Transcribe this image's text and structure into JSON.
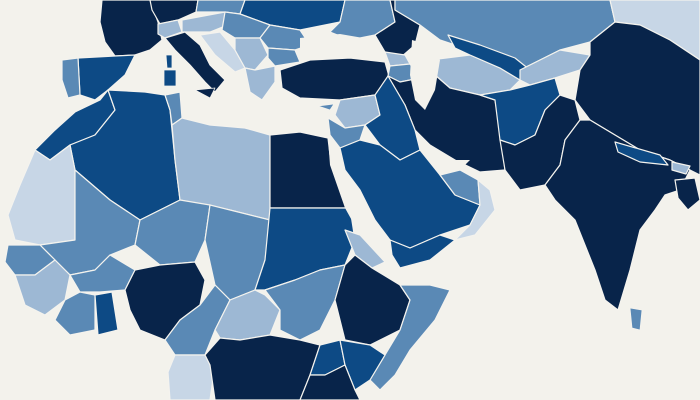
{
  "map": {
    "background": "#f3f2ec",
    "border_color": "#f4f3ee",
    "scale": {
      "c1": "#c7d6e6",
      "c2": "#9db8d4",
      "c3": "#5a89b5",
      "c4": "#0d4a85",
      "c5": "#08244a"
    }
  },
  "regions": [
    {
      "id": "france",
      "shade": "c5"
    },
    {
      "id": "benelux-germany",
      "shade": "c5"
    },
    {
      "id": "switzerland",
      "shade": "c2"
    },
    {
      "id": "austria",
      "shade": "c2"
    },
    {
      "id": "czech",
      "shade": "c3"
    },
    {
      "id": "poland",
      "shade": "c4"
    },
    {
      "id": "ukraine",
      "shade": "c3"
    },
    {
      "id": "russia-west",
      "shade": "c5"
    },
    {
      "id": "kazakhstan",
      "shade": "c3"
    },
    {
      "id": "mongolia-edge",
      "shade": "c1"
    },
    {
      "id": "spain",
      "shade": "c4"
    },
    {
      "id": "portugal",
      "shade": "c3"
    },
    {
      "id": "italy",
      "shade": "c5"
    },
    {
      "id": "sardinia",
      "shade": "c4"
    },
    {
      "id": "corsica",
      "shade": "c4"
    },
    {
      "id": "sicily",
      "shade": "c5"
    },
    {
      "id": "slovenia-croatia",
      "shade": "c1"
    },
    {
      "id": "hungary",
      "shade": "c3"
    },
    {
      "id": "balkans",
      "shade": "c2"
    },
    {
      "id": "romania",
      "shade": "c3"
    },
    {
      "id": "bulgaria",
      "shade": "c3"
    },
    {
      "id": "greece",
      "shade": "c2"
    },
    {
      "id": "turkey",
      "shade": "c5"
    },
    {
      "id": "cyprus",
      "shade": "c3"
    },
    {
      "id": "georgia",
      "shade": "c2"
    },
    {
      "id": "armenia-azer",
      "shade": "c3"
    },
    {
      "id": "turkmenistan",
      "shade": "c2"
    },
    {
      "id": "uzbekistan",
      "shade": "c4"
    },
    {
      "id": "kyrgyz-tajik",
      "shade": "c2"
    },
    {
      "id": "china",
      "shade": "c5"
    },
    {
      "id": "iran",
      "shade": "c5"
    },
    {
      "id": "afghanistan",
      "shade": "c4"
    },
    {
      "id": "pakistan",
      "shade": "c5"
    },
    {
      "id": "india",
      "shade": "c5"
    },
    {
      "id": "nepal",
      "shade": "c4"
    },
    {
      "id": "bhutan",
      "shade": "c2"
    },
    {
      "id": "bangladesh",
      "shade": "c5"
    },
    {
      "id": "sri-lanka",
      "shade": "c3"
    },
    {
      "id": "syria",
      "shade": "c2"
    },
    {
      "id": "iraq",
      "shade": "c4"
    },
    {
      "id": "jordan-levant",
      "shade": "c3"
    },
    {
      "id": "saudi-arabia",
      "shade": "c4"
    },
    {
      "id": "gulf-states",
      "shade": "c3"
    },
    {
      "id": "oman",
      "shade": "c1"
    },
    {
      "id": "yemen",
      "shade": "c4"
    },
    {
      "id": "egypt",
      "shade": "c5"
    },
    {
      "id": "libya",
      "shade": "c2"
    },
    {
      "id": "tunisia",
      "shade": "c3"
    },
    {
      "id": "algeria",
      "shade": "c4"
    },
    {
      "id": "morocco",
      "shade": "c4"
    },
    {
      "id": "mauritania",
      "shade": "c1"
    },
    {
      "id": "mali",
      "shade": "c3"
    },
    {
      "id": "niger",
      "shade": "c3"
    },
    {
      "id": "chad",
      "shade": "c3"
    },
    {
      "id": "sudan",
      "shade": "c4"
    },
    {
      "id": "eritrea",
      "shade": "c2"
    },
    {
      "id": "ethiopia",
      "shade": "c5"
    },
    {
      "id": "somalia",
      "shade": "c3"
    },
    {
      "id": "south-sudan",
      "shade": "c3"
    },
    {
      "id": "car",
      "shade": "c2"
    },
    {
      "id": "nigeria",
      "shade": "c5"
    },
    {
      "id": "senegal-area",
      "shade": "c3"
    },
    {
      "id": "guinea-area",
      "shade": "c2"
    },
    {
      "id": "burkina-faso",
      "shade": "c3"
    },
    {
      "id": "ghana",
      "shade": "c4"
    },
    {
      "id": "cote-divoire",
      "shade": "c3"
    },
    {
      "id": "cameroon",
      "shade": "c3"
    },
    {
      "id": "gabon-congo",
      "shade": "c1"
    },
    {
      "id": "dr-congo",
      "shade": "c5"
    },
    {
      "id": "uganda",
      "shade": "c4"
    },
    {
      "id": "kenya",
      "shade": "c4"
    },
    {
      "id": "tanzania",
      "shade": "c5"
    }
  ]
}
